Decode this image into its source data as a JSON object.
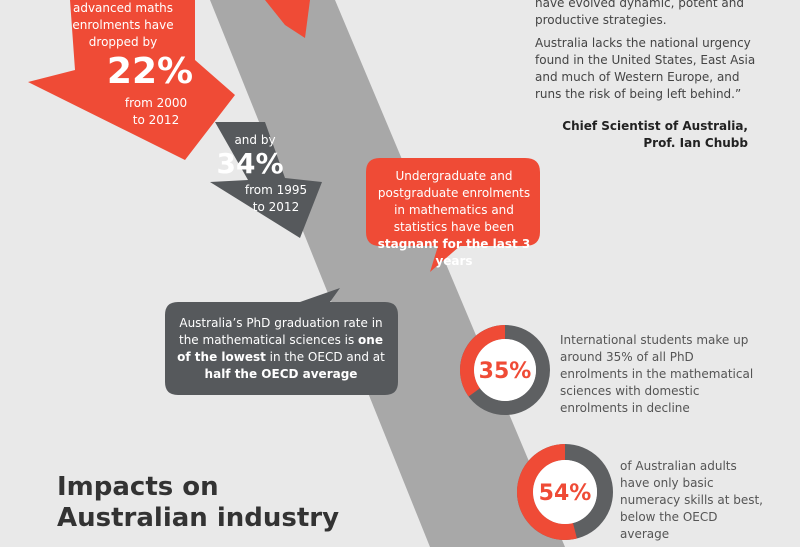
{
  "top_arrow": {
    "lead": "advanced maths enrolments have dropped by",
    "figure": "22%",
    "period": "from 2000 to 2012"
  },
  "second_arrow": {
    "lead": "and by",
    "figure": "34%",
    "period": "from 1995 to 2012"
  },
  "quote": {
    "paragraphs": [
      "have evolved dynamic, potent and productive strategies.",
      "Australia lacks the national urgency found in the United States, East Asia and much of Western Europe, and runs the risk of being left behind.”"
    ],
    "attribution": [
      "Chief Scientist of Australia,",
      "Prof. Ian Chubb"
    ]
  },
  "red_bubble": {
    "text": "Undergraduate and postgraduate enrolments in mathematics and statistics have been ",
    "bold": "stagnant for the last 3 years"
  },
  "dark_bubble": {
    "parts": [
      {
        "text": "Australia’s PhD graduation rate in the mathematical sciences is ",
        "bold": false
      },
      {
        "text": "one of the lowest",
        "bold": true
      },
      {
        "text": " in the OECD and at ",
        "bold": false
      },
      {
        "text": "half the OECD average",
        "bold": true
      }
    ]
  },
  "donuts": [
    {
      "value": 35,
      "label": "35%",
      "text": "International students make up around 35% of all PhD enrolments in the mathematical sciences with domestic enrolments in decline"
    },
    {
      "value": 54,
      "label": "54%",
      "text": "of Australian adults have only basic numeracy skills at best, below the OECD average"
    }
  ],
  "heading": "Impacts on Australian industry"
}
